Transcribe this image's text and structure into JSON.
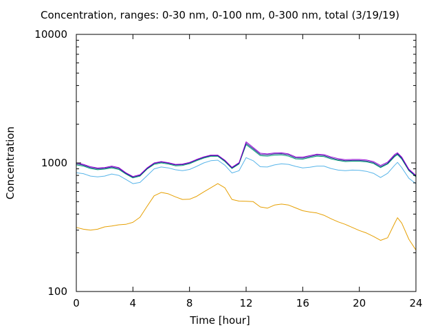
{
  "chart_data": {
    "type": "line",
    "title": "Concentration, ranges: 0-30 nm, 0-100 nm, 0-300 nm, total (3/19/19)",
    "xlabel": "Time [hour]",
    "ylabel": "Concentration",
    "xlim": [
      0,
      24
    ],
    "ylim": [
      100,
      10000
    ],
    "yscale": "log",
    "grid": false,
    "legend": "none",
    "xticks": [
      0,
      4,
      8,
      12,
      16,
      20,
      24
    ],
    "yticks": [
      100,
      1000,
      10000
    ],
    "series": [
      {
        "color": "#e69f00",
        "x": [
          0,
          0.5,
          1,
          1.5,
          2,
          2.5,
          3,
          3.5,
          4,
          4.5,
          5,
          5.5,
          6,
          6.5,
          7,
          7.5,
          8,
          8.5,
          9,
          9.5,
          10,
          10.5,
          11,
          11.5,
          12,
          12.5,
          13,
          13.5,
          14,
          14.5,
          15,
          15.5,
          16,
          16.5,
          17,
          17.5,
          18,
          18.5,
          19,
          19.5,
          20,
          20.5,
          21,
          21.5,
          22,
          22.5,
          22.7,
          23,
          23.5,
          24
        ],
        "values": [
          315,
          305,
          300,
          305,
          318,
          323,
          330,
          333,
          345,
          378,
          460,
          555,
          590,
          575,
          545,
          520,
          522,
          550,
          595,
          640,
          690,
          640,
          520,
          505,
          503,
          500,
          455,
          445,
          470,
          478,
          470,
          447,
          425,
          415,
          408,
          392,
          368,
          348,
          333,
          315,
          298,
          285,
          268,
          250,
          262,
          340,
          375,
          340,
          255,
          210
        ]
      },
      {
        "color": "#56b4e9",
        "x": [
          0,
          0.5,
          1,
          1.5,
          2,
          2.5,
          3,
          3.5,
          4,
          4.5,
          5,
          5.5,
          6,
          6.5,
          7,
          7.5,
          8,
          8.5,
          9,
          9.5,
          10,
          10.5,
          11,
          11.5,
          12,
          12.5,
          13,
          13.5,
          14,
          14.5,
          15,
          15.5,
          16,
          16.5,
          17,
          17.5,
          18,
          18.5,
          19,
          19.5,
          20,
          20.5,
          21,
          21.5,
          22,
          22.5,
          22.7,
          23,
          23.5,
          24
        ],
        "values": [
          840,
          825,
          790,
          780,
          790,
          820,
          800,
          745,
          690,
          705,
          795,
          900,
          930,
          915,
          885,
          870,
          890,
          940,
          1000,
          1040,
          1050,
          960,
          835,
          870,
          1100,
          1040,
          935,
          930,
          965,
          985,
          975,
          940,
          915,
          925,
          945,
          945,
          905,
          880,
          870,
          880,
          875,
          860,
          830,
          770,
          830,
          960,
          1010,
          920,
          760,
          690
        ]
      },
      {
        "color": "#009e73",
        "x": [
          0,
          0.5,
          1,
          1.5,
          2,
          2.5,
          3,
          3.5,
          4,
          4.5,
          5,
          5.5,
          6,
          6.5,
          7,
          7.5,
          8,
          8.5,
          9,
          9.5,
          10,
          10.5,
          11,
          11.5,
          12,
          12.5,
          13,
          13.5,
          14,
          14.5,
          15,
          15.5,
          16,
          16.5,
          17,
          17.5,
          18,
          18.5,
          19,
          19.5,
          20,
          20.5,
          21,
          21.5,
          22,
          22.5,
          22.7,
          23,
          23.5,
          24
        ],
        "values": [
          965,
          945,
          905,
          885,
          895,
          915,
          890,
          820,
          765,
          790,
          895,
          975,
          1000,
          980,
          950,
          955,
          985,
          1040,
          1090,
          1125,
          1125,
          1025,
          905,
          980,
          1390,
          1260,
          1140,
          1130,
          1150,
          1155,
          1130,
          1075,
          1070,
          1100,
          1130,
          1120,
          1075,
          1045,
          1025,
          1030,
          1030,
          1020,
          990,
          920,
          980,
          1120,
          1160,
          1070,
          870,
          780
        ]
      },
      {
        "color": "#1f1f8f",
        "x": [
          0,
          0.5,
          1,
          1.5,
          2,
          2.5,
          3,
          3.5,
          4,
          4.5,
          5,
          5.5,
          6,
          6.5,
          7,
          7.5,
          8,
          8.5,
          9,
          9.5,
          10,
          10.5,
          11,
          11.5,
          12,
          12.5,
          13,
          13.5,
          14,
          14.5,
          15,
          15.5,
          16,
          16.5,
          17,
          17.5,
          18,
          18.5,
          19,
          19.5,
          20,
          20.5,
          21,
          21.5,
          22,
          22.5,
          22.7,
          23,
          23.5,
          24
        ],
        "values": [
          985,
          960,
          920,
          900,
          910,
          930,
          905,
          830,
          775,
          800,
          905,
          990,
          1015,
          995,
          965,
          970,
          1000,
          1055,
          1105,
          1140,
          1140,
          1040,
          915,
          995,
          1420,
          1290,
          1165,
          1155,
          1175,
          1180,
          1155,
          1095,
          1090,
          1120,
          1150,
          1140,
          1095,
          1060,
          1040,
          1045,
          1045,
          1035,
          1005,
          935,
          995,
          1140,
          1180,
          1090,
          880,
          790
        ]
      },
      {
        "color": "#9400d3",
        "x": [
          0,
          0.5,
          1,
          1.5,
          2,
          2.5,
          3,
          3.5,
          4,
          4.5,
          5,
          5.5,
          6,
          6.5,
          7,
          7.5,
          8,
          8.5,
          9,
          9.5,
          10,
          10.5,
          11,
          11.5,
          12,
          12.5,
          13,
          13.5,
          14,
          14.5,
          15,
          15.5,
          16,
          16.5,
          17,
          17.5,
          18,
          18.5,
          19,
          19.5,
          20,
          20.5,
          21,
          21.5,
          22,
          22.5,
          22.7,
          23,
          23.5,
          24
        ],
        "values": [
          1005,
          975,
          935,
          915,
          920,
          945,
          920,
          840,
          785,
          810,
          915,
          1000,
          1025,
          1005,
          975,
          980,
          1010,
          1065,
          1115,
          1150,
          1150,
          1050,
          925,
          1005,
          1460,
          1320,
          1190,
          1175,
          1195,
          1200,
          1175,
          1115,
          1110,
          1140,
          1170,
          1160,
          1115,
          1080,
          1060,
          1065,
          1065,
          1055,
          1025,
          955,
          1015,
          1165,
          1200,
          1110,
          895,
          800
        ]
      }
    ]
  }
}
